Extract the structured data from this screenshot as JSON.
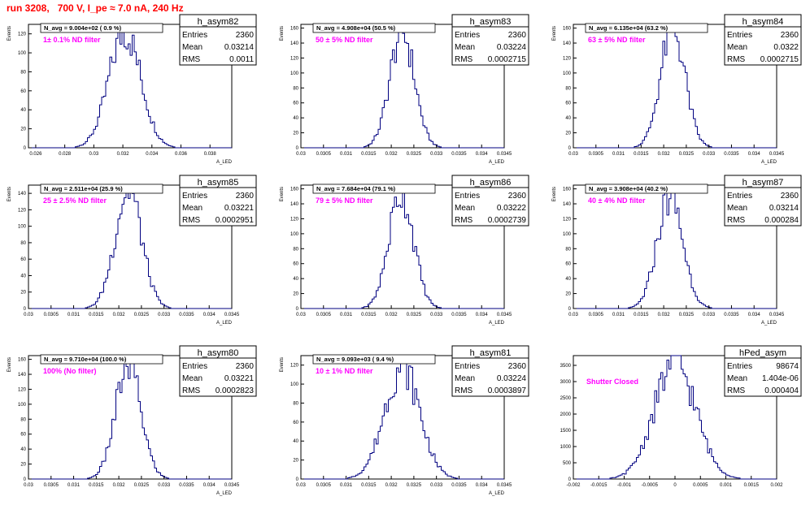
{
  "page": {
    "title": "run 3208,   700 V, I_pe ≈ 7.0 nA, 240 Hz",
    "colors": {
      "hist": "#000080",
      "annotation": "#ff00ff",
      "title": "#ff0000"
    }
  },
  "chart_data": [
    {
      "type": "bar",
      "kind": "histogram",
      "id": "h_asym82",
      "stats": {
        "name": "h_asym82",
        "entries": "2360",
        "mean": "0.03214",
        "rms": "0.0011"
      },
      "caption": "N_avg = 9.004e+02 ( 0.9 %)",
      "annotation": "1± 0.1% ND filter",
      "xlabel": "A_LED",
      "ylabel": "Events",
      "xlim": [
        0.0255,
        0.0395
      ],
      "ylim": [
        0,
        130
      ],
      "xticks": [
        0.026,
        0.028,
        0.03,
        0.032,
        0.034,
        0.036,
        0.038
      ],
      "xticklabels": [
        "0.026",
        "0.028",
        "0.03",
        "0.032",
        "0.034",
        "0.036",
        "0.038"
      ],
      "yticks": [
        0,
        20,
        40,
        60,
        80,
        100,
        120
      ],
      "mu": 0.03214,
      "sigma": 0.0011,
      "peak": 122,
      "nbins": 100
    },
    {
      "type": "bar",
      "kind": "histogram",
      "id": "h_asym83",
      "stats": {
        "name": "h_asym83",
        "entries": "2360",
        "mean": "0.03224",
        "rms": "0.0002715"
      },
      "caption": "N_avg = 4.908e+04 (50.5 %)",
      "annotation": "50 ± 5% ND filter",
      "xlabel": "A_LED",
      "ylabel": "Events",
      "xlim": [
        0.03,
        0.0345
      ],
      "ylim": [
        0,
        165
      ],
      "xticks": [
        0.03,
        0.0305,
        0.031,
        0.0315,
        0.032,
        0.0325,
        0.033,
        0.0335,
        0.034,
        0.0345
      ],
      "xticklabels": [
        "0.03",
        "0.0305",
        "0.031",
        "0.0315",
        "0.032",
        "0.0325",
        "0.033",
        "0.0335",
        "0.034",
        "0.0345"
      ],
      "yticks": [
        0,
        20,
        40,
        60,
        80,
        100,
        120,
        140,
        160
      ],
      "mu": 0.03224,
      "sigma": 0.0002715,
      "peak": 155,
      "nbins": 100
    },
    {
      "type": "bar",
      "kind": "histogram",
      "id": "h_asym84",
      "stats": {
        "name": "h_asym84",
        "entries": "2360",
        "mean": "0.0322",
        "rms": "0.0002715"
      },
      "caption": "N_avg = 6.135e+04 (63.2 %)",
      "annotation": "63 ± 5% ND filter",
      "xlabel": "A_LED",
      "ylabel": "Events",
      "xlim": [
        0.03,
        0.0345
      ],
      "ylim": [
        0,
        165
      ],
      "xticks": [
        0.03,
        0.0305,
        0.031,
        0.0315,
        0.032,
        0.0325,
        0.033,
        0.0335,
        0.034,
        0.0345
      ],
      "xticklabels": [
        "0.03",
        "0.0305",
        "0.031",
        "0.0315",
        "0.032",
        "0.0325",
        "0.033",
        "0.0335",
        "0.034",
        "0.0345"
      ],
      "yticks": [
        0,
        20,
        40,
        60,
        80,
        100,
        120,
        140,
        160
      ],
      "mu": 0.0322,
      "sigma": 0.0002715,
      "peak": 160,
      "nbins": 100
    },
    {
      "type": "bar",
      "kind": "histogram",
      "id": "h_asym85",
      "stats": {
        "name": "h_asym85",
        "entries": "2360",
        "mean": "0.03221",
        "rms": "0.0002951"
      },
      "caption": "N_avg = 2.511e+04 (25.9 %)",
      "annotation": "25 ± 2.5% ND filter",
      "xlabel": "A_LED",
      "ylabel": "Events",
      "xlim": [
        0.03,
        0.0345
      ],
      "ylim": [
        0,
        150
      ],
      "xticks": [
        0.03,
        0.0305,
        0.031,
        0.0315,
        0.032,
        0.0325,
        0.033,
        0.0335,
        0.034,
        0.0345
      ],
      "xticklabels": [
        "0.03",
        "0.0305",
        "0.031",
        "0.0315",
        "0.032",
        "0.0325",
        "0.033",
        "0.0335",
        "0.034",
        "0.0345"
      ],
      "yticks": [
        0,
        20,
        40,
        60,
        80,
        100,
        120,
        140
      ],
      "mu": 0.03221,
      "sigma": 0.0002951,
      "peak": 144,
      "nbins": 100
    },
    {
      "type": "bar",
      "kind": "histogram",
      "id": "h_asym86",
      "stats": {
        "name": "h_asym86",
        "entries": "2360",
        "mean": "0.03222",
        "rms": "0.0002739"
      },
      "caption": "N_avg = 7.684e+04 (79.1 %)",
      "annotation": "79 ± 5% ND filter",
      "xlabel": "A_LED",
      "ylabel": "Events",
      "xlim": [
        0.03,
        0.0345
      ],
      "ylim": [
        0,
        165
      ],
      "xticks": [
        0.03,
        0.0305,
        0.031,
        0.0315,
        0.032,
        0.0325,
        0.033,
        0.0335,
        0.034,
        0.0345
      ],
      "xticklabels": [
        "0.03",
        "0.0305",
        "0.031",
        "0.0315",
        "0.032",
        "0.0325",
        "0.033",
        "0.0335",
        "0.034",
        "0.0345"
      ],
      "yticks": [
        0,
        20,
        40,
        60,
        80,
        100,
        120,
        140,
        160
      ],
      "mu": 0.03222,
      "sigma": 0.0002739,
      "peak": 155,
      "nbins": 100
    },
    {
      "type": "bar",
      "kind": "histogram",
      "id": "h_asym87",
      "stats": {
        "name": "h_asym87",
        "entries": "2360",
        "mean": "0.03214",
        "rms": "0.000284"
      },
      "caption": "N_avg = 3.908e+04 (40.2 %)",
      "annotation": "40 ± 4% ND filter",
      "xlabel": "A_LED",
      "ylabel": "Events",
      "xlim": [
        0.03,
        0.0345
      ],
      "ylim": [
        0,
        165
      ],
      "xticks": [
        0.03,
        0.0305,
        0.031,
        0.0315,
        0.032,
        0.0325,
        0.033,
        0.0335,
        0.034,
        0.0345
      ],
      "xticklabels": [
        "0.03",
        "0.0305",
        "0.031",
        "0.0315",
        "0.032",
        "0.0325",
        "0.033",
        "0.0335",
        "0.034",
        "0.0345"
      ],
      "yticks": [
        0,
        20,
        40,
        60,
        80,
        100,
        120,
        140,
        160
      ],
      "mu": 0.03214,
      "sigma": 0.000284,
      "peak": 150,
      "nbins": 100
    },
    {
      "type": "bar",
      "kind": "histogram",
      "id": "h_asym80",
      "stats": {
        "name": "h_asym80",
        "entries": "2360",
        "mean": "0.03221",
        "rms": "0.0002823"
      },
      "caption": "N_avg = 9.710e+04 (100.0 %)",
      "annotation": "100% (No filter)",
      "xlabel": "A_LED",
      "ylabel": "Events",
      "xlim": [
        0.03,
        0.0345
      ],
      "ylim": [
        0,
        165
      ],
      "xticks": [
        0.03,
        0.0305,
        0.031,
        0.0315,
        0.032,
        0.0325,
        0.033,
        0.0335,
        0.034,
        0.0345
      ],
      "xticklabels": [
        "0.03",
        "0.0305",
        "0.031",
        "0.0315",
        "0.032",
        "0.0325",
        "0.033",
        "0.0335",
        "0.034",
        "0.0345"
      ],
      "yticks": [
        0,
        20,
        40,
        60,
        80,
        100,
        120,
        140,
        160
      ],
      "mu": 0.03221,
      "sigma": 0.0002823,
      "peak": 152,
      "nbins": 100
    },
    {
      "type": "bar",
      "kind": "histogram",
      "id": "h_asym81",
      "stats": {
        "name": "h_asym81",
        "entries": "2360",
        "mean": "0.03224",
        "rms": "0.0003897"
      },
      "caption": "N_avg = 9.093e+03 ( 9.4 %)",
      "annotation": "10 ± 1% ND filter",
      "xlabel": "A_LED",
      "ylabel": "Events",
      "xlim": [
        0.03,
        0.0345
      ],
      "ylim": [
        0,
        130
      ],
      "xticks": [
        0.03,
        0.0305,
        0.031,
        0.0315,
        0.032,
        0.0325,
        0.033,
        0.0335,
        0.034,
        0.0345
      ],
      "xticklabels": [
        "0.03",
        "0.0305",
        "0.031",
        "0.0315",
        "0.032",
        "0.0325",
        "0.033",
        "0.0335",
        "0.034",
        "0.0345"
      ],
      "yticks": [
        0,
        20,
        40,
        60,
        80,
        100,
        120
      ],
      "mu": 0.03224,
      "sigma": 0.0003897,
      "peak": 118,
      "nbins": 100
    },
    {
      "type": "bar",
      "kind": "histogram",
      "id": "hPed_asym",
      "stats": {
        "name": "hPed_asym",
        "entries": "98674",
        "mean": "1.404e-06",
        "rms": "0.000404"
      },
      "caption": "",
      "annotation": "Shutter Closed",
      "xlabel": "",
      "ylabel": "",
      "xlim": [
        -0.002,
        0.002
      ],
      "ylim": [
        0,
        3800
      ],
      "xticks": [
        -0.002,
        -0.0015,
        -0.001,
        -0.0005,
        0,
        0.0005,
        0.001,
        0.0015,
        0.002
      ],
      "xticklabels": [
        "-0.002",
        "-0.0015",
        "-0.001",
        "-0.0005",
        "0",
        "0.0005",
        "0.001",
        "0.0015",
        "0.002"
      ],
      "yticks": [
        0,
        500,
        1000,
        1500,
        2000,
        2500,
        3000,
        3500
      ],
      "mu": 1.404e-06,
      "sigma": 0.000404,
      "peak": 3600,
      "nbins": 100
    }
  ]
}
